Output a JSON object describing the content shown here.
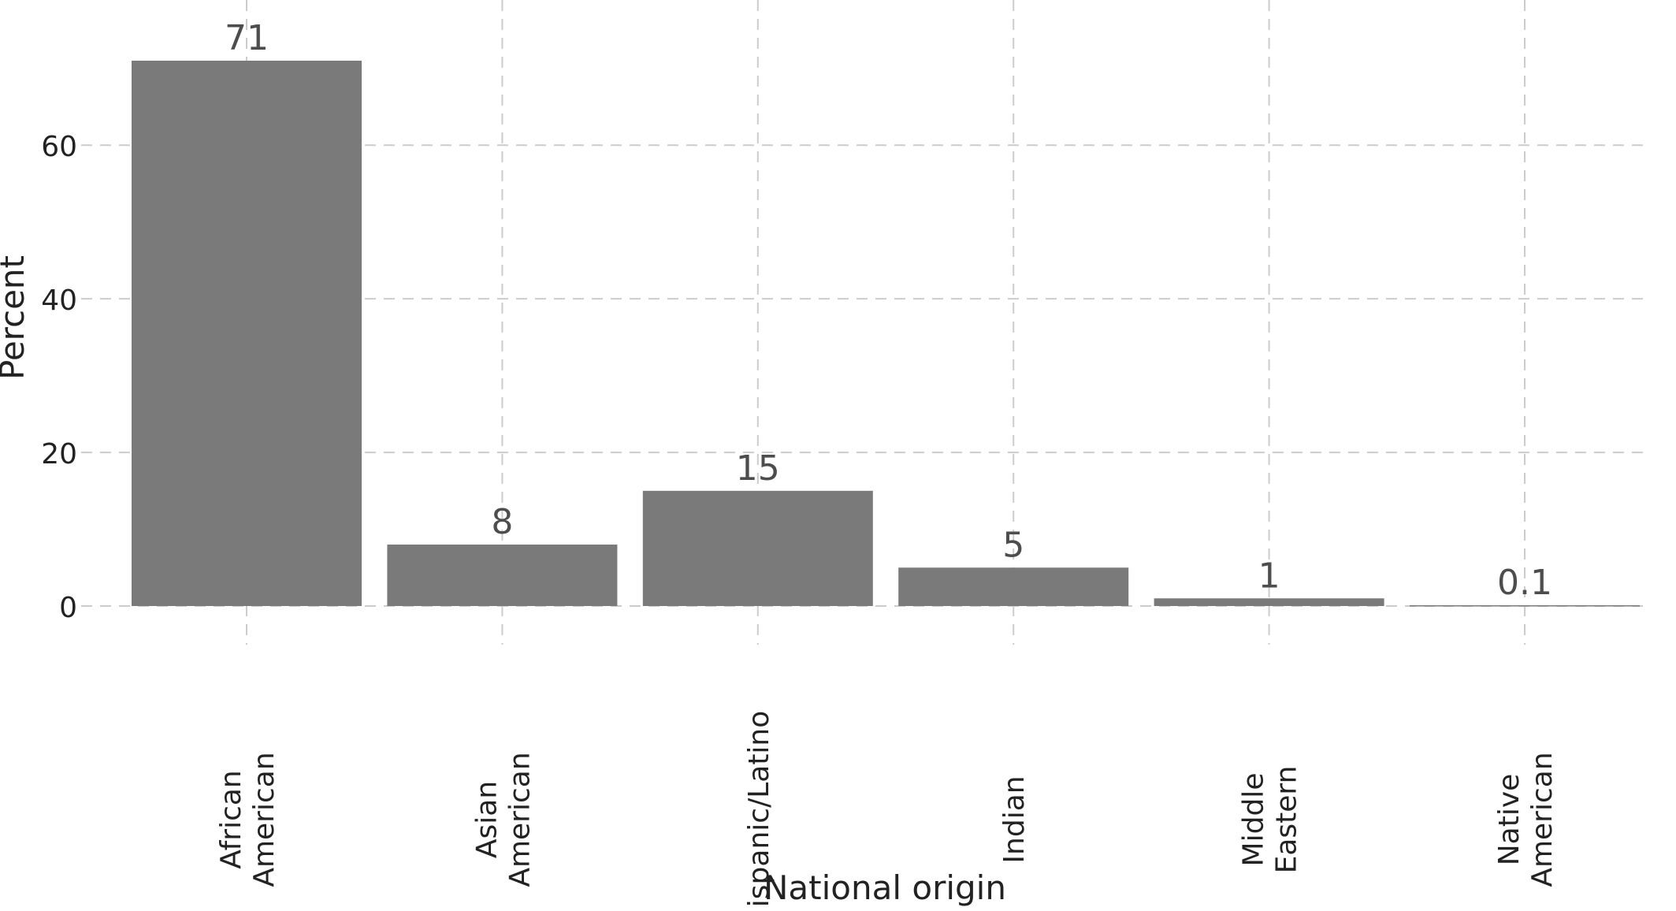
{
  "chart_data": {
    "type": "bar",
    "categories": [
      [
        "African",
        "American"
      ],
      [
        "Asian",
        "American"
      ],
      [
        "Hispanic/Latino"
      ],
      [
        "Indian"
      ],
      [
        "Middle",
        "Eastern"
      ],
      [
        "Native",
        "American"
      ]
    ],
    "values": [
      71,
      8,
      15,
      5,
      1,
      0.1
    ],
    "data_labels": [
      "71",
      "8",
      "15",
      "5",
      "1",
      "0.1"
    ],
    "xlabel": "National origin",
    "ylabel": "Percent",
    "ylim": [
      0,
      71
    ],
    "yticks": [
      0,
      20,
      40,
      60
    ],
    "grid": true,
    "grid_style": "dashed",
    "legend": "none",
    "bar_color": "#7a7a7a",
    "grid_color": "#cccccc",
    "text_color": "#222222",
    "data_label_color": "#4d4d4d"
  }
}
